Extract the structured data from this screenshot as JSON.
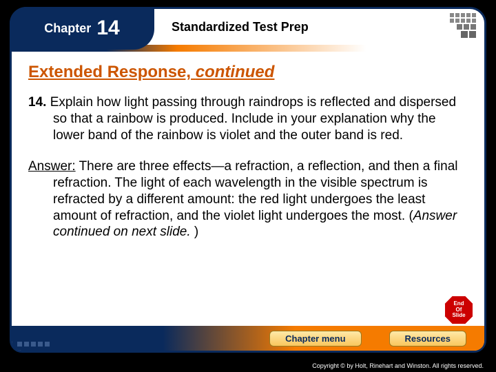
{
  "colors": {
    "brand_dark": "#0a2a5c",
    "brand_orange": "#f57b00",
    "heading_orange": "#cc5500",
    "background": "#000000",
    "slide_bg": "#ffffff",
    "badge_red": "#cc0000",
    "nav_btn_text": "#0a2a5c"
  },
  "chapter": {
    "label": "Chapter",
    "number": "14",
    "subject": "Standardized Test Prep"
  },
  "section": {
    "title_main": "Extended Response,",
    "title_ital": "continued"
  },
  "question": {
    "number": "14.",
    "text": "Explain how light passing through raindrops is reflected and dispersed so that a rainbow is produced. Include in your explanation why the lower band of the rainbow is violet and the outer band is red."
  },
  "answer": {
    "label": "Answer:",
    "text_pre_ital": "There are three effects—a refraction, a reflection, and then a final refraction. The light of each wavelength in the visible spectrum is refracted by a different amount: the red light undergoes the least amount of refraction, and the violet light undergoes the most. (",
    "ital": "Answer continued on next slide.",
    "text_post_ital": " )"
  },
  "end_badge": {
    "line1": "End",
    "line2": "Of",
    "line3": "Slide"
  },
  "nav": {
    "chapter_menu": "Chapter menu",
    "resources": "Resources"
  },
  "footer": {
    "copyright": "Copyright © by Holt, Rinehart and Winston. All rights reserved."
  }
}
